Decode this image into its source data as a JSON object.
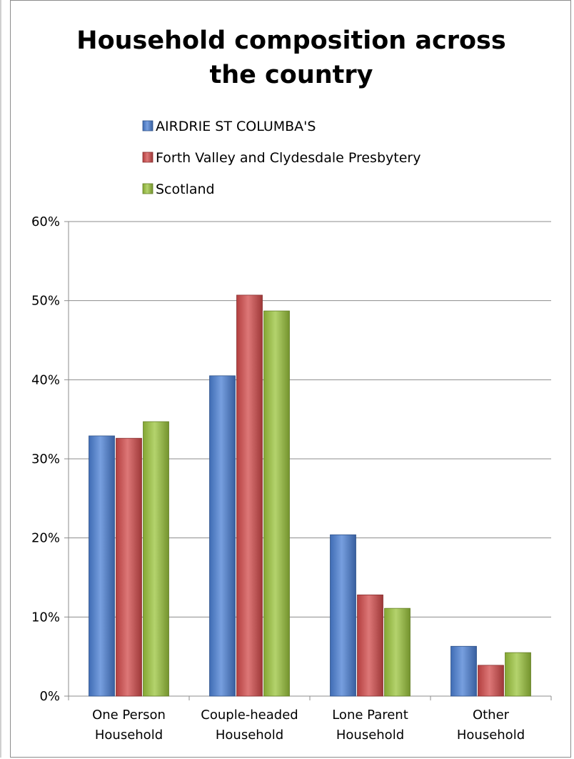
{
  "chart_data": {
    "type": "bar",
    "title": [
      "Household composition across",
      "the country"
    ],
    "categories": [
      [
        "One Person",
        "Household"
      ],
      [
        "Couple-headed",
        "Household"
      ],
      [
        "Lone Parent",
        "Household"
      ],
      [
        "Other",
        "Household"
      ]
    ],
    "series": [
      {
        "name": "AIRDRIE ST COLUMBA'S",
        "color": "#4a7fd4",
        "values": [
          32.9,
          40.5,
          20.4,
          6.3
        ]
      },
      {
        "name": "Forth Valley and Clydesdale Presbytery",
        "color": "#d24a4a",
        "values": [
          32.6,
          50.7,
          12.8,
          3.9
        ]
      },
      {
        "name": "Scotland",
        "color": "#9bc43c",
        "values": [
          34.7,
          48.7,
          11.1,
          5.5
        ]
      }
    ],
    "y_ticks": [
      "0%",
      "10%",
      "20%",
      "30%",
      "40%",
      "50%",
      "60%"
    ],
    "ylim": [
      0,
      60
    ],
    "grid": true,
    "legend_position": "top-left"
  }
}
